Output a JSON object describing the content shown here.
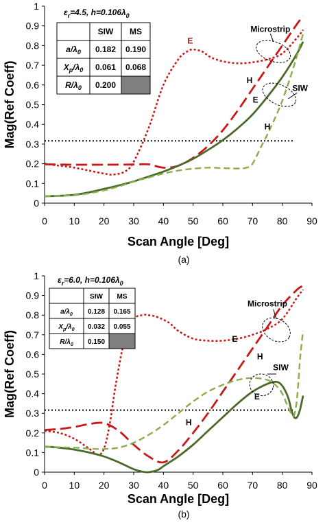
{
  "chart_data": [
    {
      "type": "line",
      "id": "a",
      "caption": "(a)",
      "condition_eps": "ε",
      "condition_eps_sub": "r",
      "condition_rest": "=4.5, h=0.106λ",
      "condition_rest_sub": "0",
      "xlabel": "Scan Angle [Deg]",
      "ylabel": "Mag(Ref Coeff)",
      "xlim": [
        0,
        90
      ],
      "ylim": [
        0,
        1
      ],
      "xticks": [
        "0",
        "10",
        "20",
        "30",
        "40",
        "50",
        "60",
        "70",
        "80",
        "90"
      ],
      "yticks": [
        "0",
        "0.1",
        "0.2",
        "0.3",
        "0.4",
        "0.5",
        "0.6",
        "0.7",
        "0.8",
        "0.9",
        "1"
      ],
      "threshold": 0.316,
      "colors": {
        "ms": "#c81818",
        "siw": "#4a6a2a",
        "siw_h": "#8aae4a",
        "threshold": "#000000"
      },
      "series": [
        {
          "style": "ms_e",
          "x": [
            0,
            5,
            10,
            15,
            20,
            23,
            27,
            30,
            35,
            40,
            45,
            48,
            50,
            53,
            56,
            60,
            65,
            70,
            75,
            80,
            85,
            87
          ],
          "y": [
            0.2,
            0.19,
            0.18,
            0.165,
            0.15,
            0.145,
            0.16,
            0.21,
            0.38,
            0.6,
            0.73,
            0.77,
            0.78,
            0.77,
            0.74,
            0.72,
            0.71,
            0.715,
            0.73,
            0.76,
            0.84,
            0.88
          ]
        },
        {
          "style": "ms_h",
          "x": [
            0,
            5,
            10,
            20,
            30,
            35,
            40,
            45,
            50,
            55,
            60,
            65,
            70,
            75,
            80,
            85,
            87
          ],
          "y": [
            0.197,
            0.196,
            0.195,
            0.195,
            0.196,
            0.197,
            0.18,
            0.19,
            0.23,
            0.29,
            0.37,
            0.47,
            0.58,
            0.69,
            0.8,
            0.91,
            0.95
          ]
        },
        {
          "style": "siw_e",
          "x": [
            0,
            5,
            10,
            15,
            20,
            25,
            30,
            35,
            40,
            45,
            50,
            55,
            60,
            65,
            70,
            75,
            80,
            85,
            87
          ],
          "y": [
            0.035,
            0.037,
            0.042,
            0.055,
            0.072,
            0.09,
            0.11,
            0.135,
            0.16,
            0.19,
            0.225,
            0.27,
            0.32,
            0.38,
            0.45,
            0.54,
            0.64,
            0.76,
            0.82
          ]
        },
        {
          "style": "siw_h",
          "x": [
            0,
            5,
            10,
            15,
            20,
            25,
            30,
            35,
            40,
            45,
            50,
            55,
            60,
            65,
            68,
            70,
            73,
            76,
            80,
            84,
            87
          ],
          "y": [
            0.035,
            0.037,
            0.04,
            0.05,
            0.065,
            0.085,
            0.11,
            0.13,
            0.15,
            0.165,
            0.175,
            0.18,
            0.178,
            0.176,
            0.18,
            0.2,
            0.29,
            0.38,
            0.52,
            0.7,
            0.86
          ]
        }
      ],
      "annotations": [
        {
          "text": "E",
          "x": 49,
          "y": 0.81,
          "color": "ms"
        },
        {
          "text": "Microstrip",
          "x": 76,
          "y": 0.87,
          "color": "black"
        },
        {
          "text": "H",
          "x": 69,
          "y": 0.61,
          "color": "black"
        },
        {
          "text": "E",
          "x": 71,
          "y": 0.51,
          "color": "black"
        },
        {
          "text": "SIW",
          "x": 86,
          "y": 0.57,
          "color": "black"
        },
        {
          "text": "H",
          "x": 75,
          "y": 0.375,
          "color": "black"
        }
      ],
      "ellipses": [
        {
          "cx": 77,
          "cy": 0.77,
          "rx": 6,
          "ry": 0.05,
          "rot": 20,
          "lx1": 77,
          "ly1": 0.82,
          "lx2": 76,
          "ly2": 0.86
        },
        {
          "cx": 79,
          "cy": 0.55,
          "rx": 6,
          "ry": 0.05,
          "rot": 25,
          "lx1": 82,
          "ly1": 0.53,
          "lx2": 85,
          "ly2": 0.56
        }
      ],
      "table": {
        "headers": [
          "",
          "SIW",
          "MS"
        ],
        "rows": [
          {
            "label": "a/λ",
            "sub": "0",
            "values": [
              "0.182",
              "0.190"
            ],
            "filled": false
          },
          {
            "label": "X",
            "sub": "p",
            "label2": "/λ",
            "sub2": "0",
            "values": [
              "0.061",
              "0.068"
            ],
            "filled": false
          },
          {
            "label": "R/λ",
            "sub": "0",
            "values": [
              "0.200",
              ""
            ],
            "filled": true
          }
        ]
      }
    },
    {
      "type": "line",
      "id": "b",
      "caption": "(b)",
      "condition_eps": "ε",
      "condition_eps_sub": "r",
      "condition_rest": "=6.0, h=0.106λ",
      "condition_rest_sub": "0",
      "xlabel": "Scan Angle [Deg]",
      "ylabel": "Mag(Ref Coeff)",
      "xlim": [
        0,
        90
      ],
      "ylim": [
        0,
        1
      ],
      "xticks": [
        "0",
        "10",
        "20",
        "30",
        "40",
        "50",
        "60",
        "70",
        "80",
        "90"
      ],
      "yticks": [
        "0",
        "0.1",
        "0.2",
        "0.3",
        "0.4",
        "0.5",
        "0.6",
        "0.7",
        "0.8",
        "0.9",
        "1"
      ],
      "threshold": 0.316,
      "colors": {
        "ms": "#c81818",
        "siw": "#4a6a2a",
        "siw_h": "#8aae4a",
        "threshold": "#000000"
      },
      "series": [
        {
          "style": "ms_e",
          "x": [
            0,
            5,
            10,
            15,
            18,
            20,
            22,
            24,
            27,
            30,
            33,
            35,
            38,
            42,
            45,
            50,
            55,
            60,
            65,
            70,
            75,
            80,
            85,
            87
          ],
          "y": [
            0.21,
            0.2,
            0.17,
            0.12,
            0.09,
            0.12,
            0.25,
            0.45,
            0.68,
            0.78,
            0.8,
            0.8,
            0.79,
            0.76,
            0.72,
            0.68,
            0.67,
            0.67,
            0.68,
            0.7,
            0.73,
            0.78,
            0.89,
            0.93
          ]
        },
        {
          "style": "ms_h",
          "x": [
            0,
            5,
            10,
            15,
            20,
            25,
            30,
            35,
            40,
            45,
            50,
            55,
            60,
            65,
            70,
            75,
            80,
            85,
            87
          ],
          "y": [
            0.215,
            0.22,
            0.23,
            0.245,
            0.25,
            0.21,
            0.14,
            0.08,
            0.05,
            0.11,
            0.2,
            0.3,
            0.41,
            0.52,
            0.63,
            0.74,
            0.85,
            0.93,
            0.95
          ]
        },
        {
          "style": "siw_e",
          "x": [
            0,
            5,
            10,
            15,
            20,
            25,
            30,
            33,
            35,
            38,
            40,
            45,
            50,
            55,
            60,
            65,
            70,
            75,
            78,
            80,
            82,
            83,
            84,
            85,
            86,
            87
          ],
          "y": [
            0.13,
            0.125,
            0.115,
            0.1,
            0.08,
            0.05,
            0.015,
            0.002,
            0.0,
            0.01,
            0.03,
            0.08,
            0.14,
            0.21,
            0.28,
            0.35,
            0.41,
            0.45,
            0.46,
            0.44,
            0.38,
            0.32,
            0.28,
            0.28,
            0.32,
            0.39
          ]
        },
        {
          "style": "siw_h",
          "x": [
            0,
            5,
            10,
            15,
            20,
            25,
            30,
            35,
            40,
            45,
            50,
            55,
            60,
            65,
            70,
            75,
            78,
            80,
            82,
            83,
            84,
            85,
            86,
            87
          ],
          "y": [
            0.13,
            0.127,
            0.125,
            0.12,
            0.118,
            0.125,
            0.15,
            0.19,
            0.24,
            0.3,
            0.36,
            0.41,
            0.445,
            0.47,
            0.48,
            0.47,
            0.44,
            0.4,
            0.33,
            0.3,
            0.29,
            0.38,
            0.58,
            0.72
          ]
        }
      ],
      "annotations": [
        {
          "text": "Microstrip",
          "x": 75,
          "y": 0.845,
          "color": "black"
        },
        {
          "text": "E",
          "x": 64,
          "y": 0.665,
          "color": "black"
        },
        {
          "text": "H",
          "x": 72.5,
          "y": 0.575,
          "color": "black"
        },
        {
          "text": "SIW",
          "x": 79.5,
          "y": 0.52,
          "color": "black"
        },
        {
          "text": "E",
          "x": 71.5,
          "y": 0.37,
          "color": "black"
        },
        {
          "text": "H",
          "x": 48.5,
          "y": 0.24,
          "color": "black"
        }
      ],
      "ellipses": [
        {
          "cx": 78,
          "cy": 0.725,
          "rx": 5,
          "ry": 0.055,
          "rot": 30,
          "lx1": 78,
          "ly1": 0.78,
          "lx2": 77,
          "ly2": 0.83
        },
        {
          "cx": 73,
          "cy": 0.445,
          "rx": 4,
          "ry": 0.055,
          "rot": 15,
          "lx1": 75,
          "ly1": 0.5,
          "lx2": 78,
          "ly2": 0.5
        }
      ],
      "table": {
        "headers": [
          "",
          "SIW",
          "MS"
        ],
        "rows": [
          {
            "label": "a/λ",
            "sub": "0",
            "values": [
              "0.128",
              "0.165"
            ],
            "filled": false
          },
          {
            "label": "X",
            "sub": "p",
            "label2": "/λ",
            "sub2": "0",
            "values": [
              "0.032",
              "0.055"
            ],
            "filled": false
          },
          {
            "label": "R/λ",
            "sub": "0",
            "values": [
              "0.150",
              ""
            ],
            "filled": true
          }
        ]
      }
    }
  ]
}
